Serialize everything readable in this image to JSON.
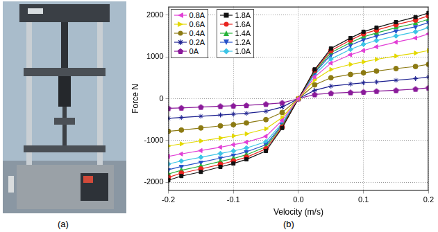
{
  "panels": {
    "a": {
      "label": "(a)"
    },
    "b": {
      "label": "(b)"
    }
  },
  "chart_data": {
    "type": "line",
    "x_label": "Velocity (m/s)",
    "y_label": "Force N",
    "x": [
      -0.2,
      -0.18,
      -0.15,
      -0.12,
      -0.1,
      -0.08,
      -0.05,
      -0.025,
      0,
      0.025,
      0.05,
      0.08,
      0.1,
      0.12,
      0.15,
      0.18,
      0.2
    ],
    "xlim": [
      -0.2,
      0.2
    ],
    "xticks": [
      -0.2,
      -0.1,
      {
        "value": 0,
        "label": "0.0"
      },
      0.1,
      0.2
    ],
    "ylim": [
      -2200,
      2200
    ],
    "yticks": [
      -2000,
      -1000,
      0,
      1000,
      2000
    ],
    "grid": true,
    "legend": "upper left",
    "series": [
      {
        "name": "0.8A",
        "color": "#e23fd6",
        "marker": "triangle-left",
        "values": [
          -1380,
          -1320,
          -1240,
          -1160,
          -1100,
          -1040,
          -900,
          -520,
          0,
          520,
          850,
          1050,
          1150,
          1240,
          1350,
          1450,
          1550
        ]
      },
      {
        "name": "0.6A",
        "color": "#e3d800",
        "marker": "triangle-right",
        "values": [
          -1130,
          -1080,
          -1010,
          -940,
          -890,
          -840,
          -720,
          -450,
          0,
          450,
          700,
          820,
          880,
          940,
          1020,
          1090,
          1150
        ]
      },
      {
        "name": "0.4A",
        "color": "#8c7a12",
        "marker": "circle",
        "values": [
          -780,
          -750,
          -700,
          -650,
          -620,
          -580,
          -500,
          -330,
          0,
          330,
          500,
          580,
          620,
          660,
          720,
          770,
          820
        ]
      },
      {
        "name": "0.2A",
        "color": "#1b1f8f",
        "marker": "star",
        "values": [
          -470,
          -450,
          -420,
          -390,
          -370,
          -350,
          -300,
          -200,
          0,
          200,
          300,
          350,
          380,
          400,
          440,
          480,
          520
        ]
      },
      {
        "name": "0A",
        "color": "#8a1a9a",
        "marker": "pentagon",
        "values": [
          -230,
          -220,
          -200,
          -180,
          -170,
          -160,
          -130,
          -100,
          0,
          100,
          130,
          150,
          160,
          180,
          200,
          230,
          260
        ]
      },
      {
        "name": "1.8A",
        "color": "#111111",
        "marker": "square",
        "values": [
          -1950,
          -1850,
          -1750,
          -1630,
          -1550,
          -1450,
          -1250,
          -700,
          0,
          700,
          1200,
          1450,
          1600,
          1700,
          1830,
          1950,
          2050
        ]
      },
      {
        "name": "1.6A",
        "color": "#e8231f",
        "marker": "circle",
        "values": [
          -1880,
          -1780,
          -1680,
          -1570,
          -1490,
          -1400,
          -1200,
          -680,
          0,
          680,
          1150,
          1400,
          1550,
          1640,
          1770,
          1880,
          1980
        ]
      },
      {
        "name": "1.4A",
        "color": "#26b33a",
        "marker": "triangle-up",
        "values": [
          -1800,
          -1710,
          -1610,
          -1500,
          -1430,
          -1340,
          -1150,
          -650,
          0,
          650,
          1100,
          1340,
          1480,
          1570,
          1700,
          1800,
          1900
        ]
      },
      {
        "name": "1.2A",
        "color": "#2450c8",
        "marker": "triangle-down",
        "values": [
          -1700,
          -1620,
          -1520,
          -1420,
          -1350,
          -1270,
          -1100,
          -620,
          0,
          620,
          1050,
          1280,
          1410,
          1500,
          1620,
          1720,
          1820
        ]
      },
      {
        "name": "1.0A",
        "color": "#3cc4e6",
        "marker": "diamond",
        "values": [
          -1560,
          -1490,
          -1400,
          -1310,
          -1250,
          -1180,
          -1030,
          -580,
          0,
          580,
          950,
          1180,
          1300,
          1390,
          1500,
          1600,
          1700
        ]
      }
    ]
  }
}
